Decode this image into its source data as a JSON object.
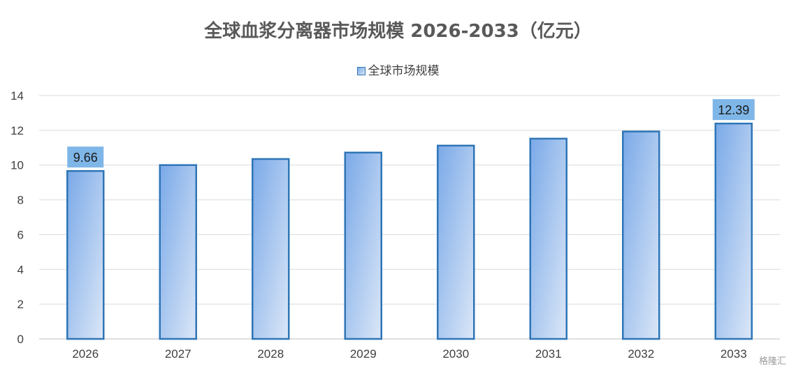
{
  "chart_data": {
    "type": "bar",
    "title": "全球血浆分离器市场规模 2026-2033（亿元）",
    "legend": {
      "position": "top",
      "entries": [
        "全球市场规模"
      ]
    },
    "categories": [
      "2026",
      "2027",
      "2028",
      "2029",
      "2030",
      "2031",
      "2032",
      "2033"
    ],
    "series": [
      {
        "name": "全球市场规模",
        "values": [
          9.66,
          10.0,
          10.35,
          10.72,
          11.12,
          11.52,
          11.93,
          12.39
        ]
      }
    ],
    "data_labels": [
      {
        "category": "2026",
        "text": "9.66"
      },
      {
        "category": "2033",
        "text": "12.39"
      }
    ],
    "xlabel": "",
    "ylabel": "",
    "ylim": [
      0,
      14
    ],
    "yticks": [
      0,
      2,
      4,
      6,
      8,
      10,
      12,
      14
    ],
    "grid": true,
    "colors": {
      "bar_border": "#2e75b6",
      "bar_fill_dark": "#7aa9e8",
      "bar_fill_light": "#dbe7f7",
      "label_box": "#7fb6e8",
      "grid": "#d9d9d9"
    }
  },
  "watermark": "格隆汇"
}
